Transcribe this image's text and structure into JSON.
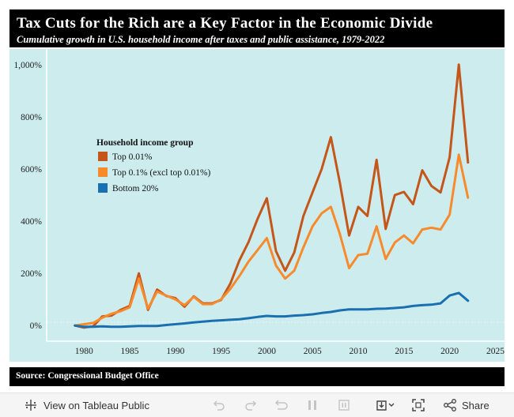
{
  "header": {
    "title": "Tax Cuts for the Rich are a Key Factor in the Economic Divide",
    "subtitle": "Cumulative growth in U.S. household income after taxes and public assistance, 1979-2022"
  },
  "footer": {
    "source": "Source: Congressional Budget Office"
  },
  "toolbar": {
    "view_label": "View on Tableau Public",
    "share_label": "Share",
    "icons": [
      "tableau-logo-icon",
      "undo-icon",
      "redo-icon",
      "revert-icon",
      "pause-icon",
      "download-icon",
      "fullscreen-icon",
      "share-icon"
    ]
  },
  "colors": {
    "plot_bg": "#cdecee",
    "top001": "#c4561a",
    "top01": "#f78b2c",
    "bottom20": "#1a6fb0"
  },
  "chart_data": {
    "type": "line",
    "x_ticks": [
      1980,
      1985,
      1990,
      1995,
      2000,
      2005,
      2010,
      2015,
      2020,
      2025
    ],
    "y_ticks": [
      {
        "value": 0,
        "label": "0%"
      },
      {
        "value": 200,
        "label": "200%"
      },
      {
        "value": 400,
        "label": "400%"
      },
      {
        "value": 600,
        "label": "600%"
      },
      {
        "value": 800,
        "label": "800%"
      },
      {
        "value": 1000,
        "label": "1,000%"
      }
    ],
    "xlim": [
      1976,
      2026
    ],
    "ylim": [
      -60,
      1060
    ],
    "grid": false,
    "legend": {
      "title": "Household income group",
      "position": "upper-left"
    },
    "x": [
      1979,
      1980,
      1981,
      1982,
      1983,
      1984,
      1985,
      1986,
      1987,
      1988,
      1989,
      1990,
      1991,
      1992,
      1993,
      1994,
      1995,
      1996,
      1997,
      1998,
      1999,
      2000,
      2001,
      2002,
      2003,
      2004,
      2005,
      2006,
      2007,
      2008,
      2009,
      2010,
      2011,
      2012,
      2013,
      2014,
      2015,
      2016,
      2017,
      2018,
      2019,
      2020,
      2021,
      2022
    ],
    "series": [
      {
        "name": "Top 0.01%",
        "color": "#c4561a",
        "values": [
          0,
          -8,
          -3,
          35,
          38,
          60,
          75,
          200,
          60,
          138,
          113,
          105,
          72,
          112,
          85,
          85,
          98,
          160,
          250,
          320,
          410,
          488,
          285,
          210,
          280,
          420,
          510,
          600,
          722,
          545,
          345,
          455,
          420,
          635,
          370,
          500,
          512,
          465,
          595,
          535,
          510,
          645,
          1000,
          625
        ]
      },
      {
        "name": "Top 0.1% (excl top 0.01%)",
        "color": "#f78b2c",
        "values": [
          0,
          5,
          10,
          30,
          45,
          55,
          70,
          180,
          65,
          130,
          115,
          100,
          78,
          110,
          82,
          82,
          100,
          140,
          190,
          245,
          290,
          335,
          230,
          180,
          210,
          300,
          380,
          430,
          455,
          350,
          220,
          270,
          275,
          380,
          255,
          318,
          345,
          315,
          368,
          375,
          368,
          425,
          655,
          490
        ]
      },
      {
        "name": "Bottom 20%",
        "color": "#1a6fb0",
        "values": [
          0,
          -5,
          -5,
          -3,
          -5,
          -5,
          -3,
          -2,
          -2,
          -2,
          2,
          5,
          8,
          12,
          15,
          18,
          20,
          22,
          24,
          28,
          33,
          37,
          35,
          35,
          38,
          40,
          43,
          48,
          52,
          58,
          62,
          62,
          62,
          64,
          65,
          67,
          70,
          75,
          78,
          80,
          85,
          115,
          125,
          95
        ]
      }
    ]
  }
}
